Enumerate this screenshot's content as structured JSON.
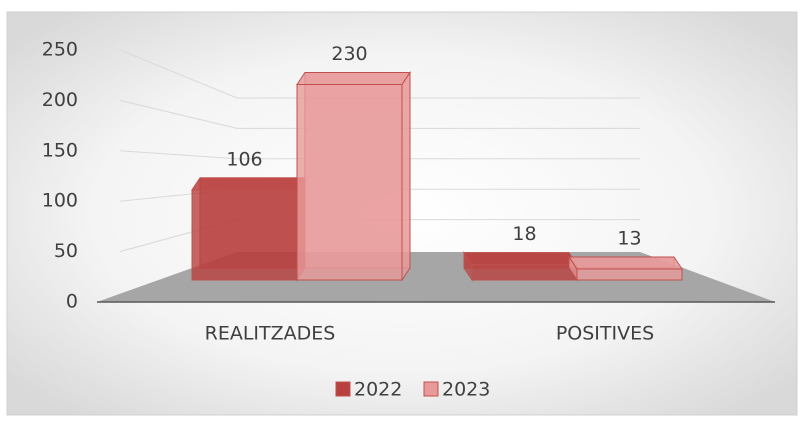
{
  "chart_data": {
    "type": "bar3d",
    "categories": [
      "REALITZADES",
      "POSITIVES"
    ],
    "series": [
      {
        "name": "2022",
        "color": "#b8403e",
        "values": [
          106,
          18
        ]
      },
      {
        "name": "2023",
        "color": "#e89a9a",
        "values": [
          230,
          13
        ]
      }
    ],
    "ylim": [
      0,
      250
    ],
    "yticks": [
      0,
      50,
      100,
      150,
      200,
      250
    ],
    "grid": true,
    "legend": "bottom",
    "data_labels": true
  }
}
